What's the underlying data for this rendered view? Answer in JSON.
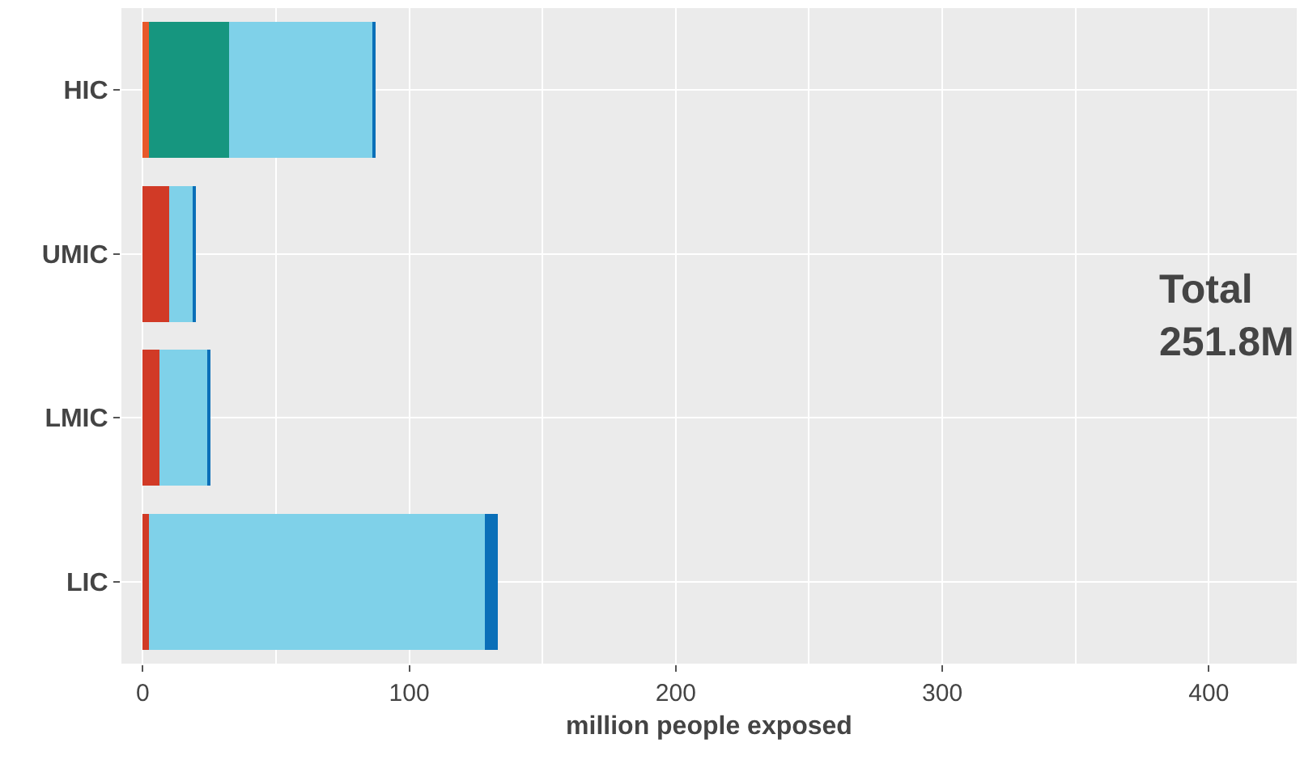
{
  "chart_data": {
    "type": "bar",
    "orientation": "horizontal",
    "stacked": true,
    "categories": [
      "HIC",
      "UMIC",
      "LMIC",
      "LIC"
    ],
    "series": [
      {
        "colors": [
          "#e8582a",
          "#d13a26",
          "#d13a26",
          "#d13a26"
        ],
        "values": [
          2.3,
          9.8,
          6.2,
          2.4
        ]
      },
      {
        "color": "#16967f",
        "values": [
          30,
          null,
          null,
          null
        ]
      },
      {
        "color": "#7fd1e9",
        "values": [
          54,
          9.5,
          18.3,
          126
        ]
      },
      {
        "color": "#0a6fb8",
        "values": [
          0.6,
          0.6,
          0.6,
          4.8
        ]
      }
    ],
    "xlabel": "million people exposed",
    "xlim": [
      -8,
      433
    ],
    "xticks": [
      0,
      100,
      200,
      300,
      400
    ],
    "grid": true,
    "annotations": [
      "Total\n251.8M"
    ]
  }
}
